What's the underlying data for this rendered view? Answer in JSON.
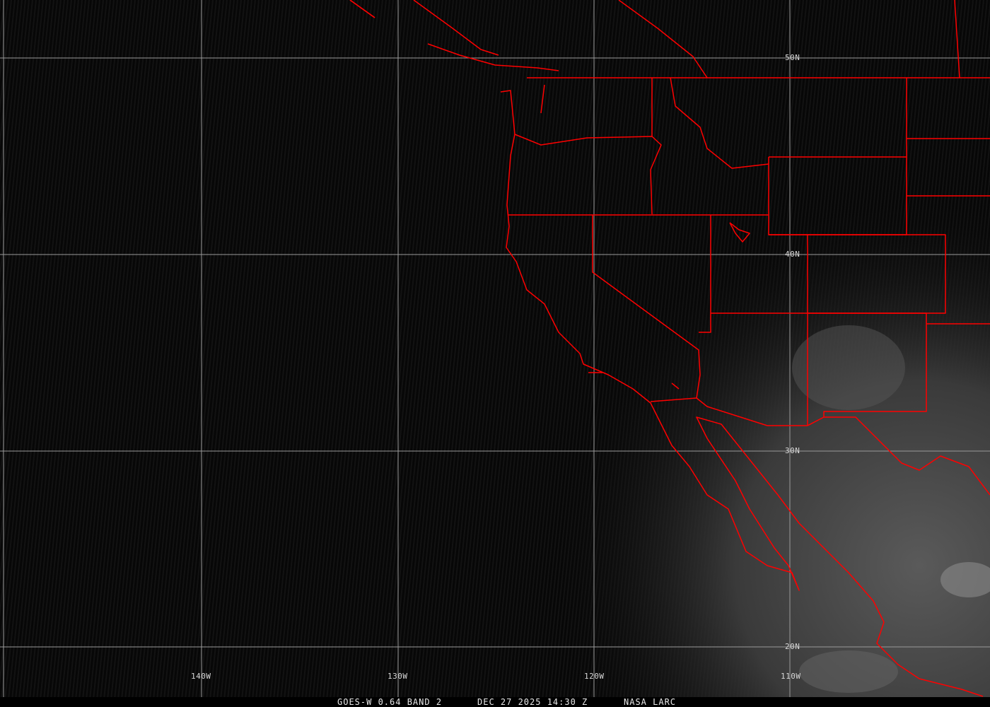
{
  "map": {
    "longitude_labels": [
      "140W",
      "130W",
      "120W",
      "110W"
    ],
    "latitude_labels": [
      "50N",
      "40N",
      "30N",
      "20N"
    ],
    "border_color": "#ff0000",
    "grid_color": "#9a9a9a"
  },
  "caption": {
    "product": "GOES-W 0.64 BAND 2",
    "datetime": "DEC 27 2025 14:30 Z",
    "source": "NASA LARC"
  }
}
